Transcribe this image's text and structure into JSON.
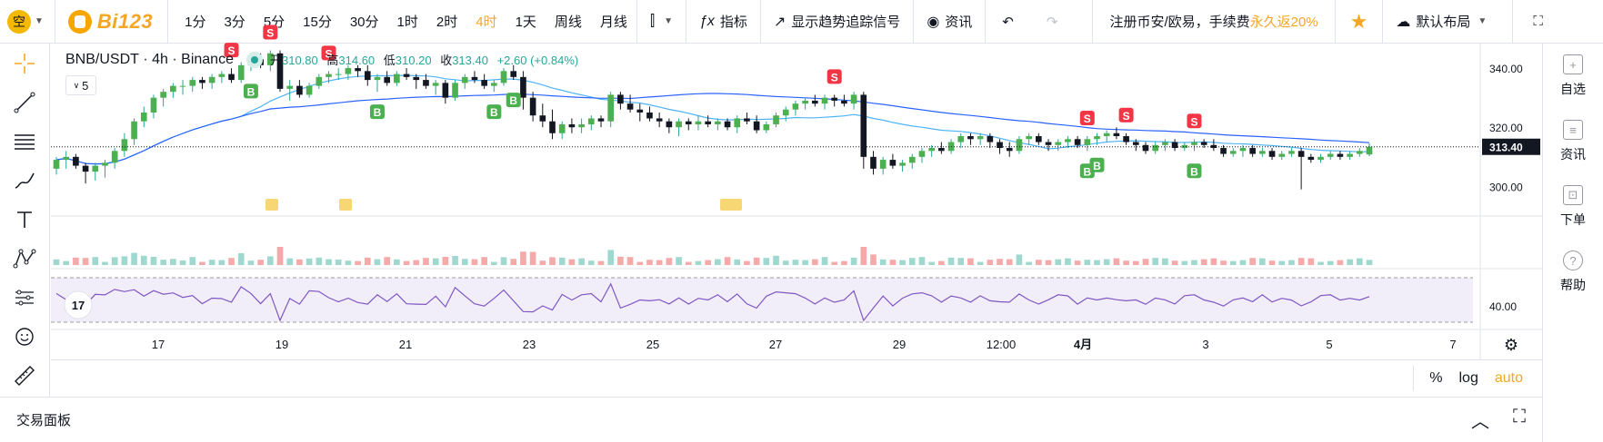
{
  "topbar": {
    "avatar_char": "空",
    "logo_text": "Bi123",
    "intervals": [
      "1分",
      "3分",
      "5分",
      "15分",
      "30分",
      "1时",
      "2时",
      "4时",
      "1天",
      "周线",
      "月线"
    ],
    "active_interval": "4时",
    "indicators_label": "指标",
    "trend_signal_label": "显示趋势追踪信号",
    "news_label": "资讯",
    "promo_text": "注册币安/欧易，手续费",
    "promo_highlight": "永久返20%",
    "layout_label": "默认布局"
  },
  "legend": {
    "symbol": "BNB/USDT",
    "interval": "4h",
    "exchange": "Binance",
    "open_label": "开",
    "open": "310.80",
    "high_label": "高",
    "high": "314.60",
    "low_label": "低",
    "low": "310.20",
    "close_label": "收",
    "close": "313.40",
    "change": "+2.60 (+0.84%)",
    "ma_count": "5"
  },
  "right_sidebar": {
    "items": [
      {
        "label": "自选",
        "icon": "plus-square-icon"
      },
      {
        "label": "资讯",
        "icon": "news-icon"
      },
      {
        "label": "下单",
        "icon": "order-icon"
      },
      {
        "label": "帮助",
        "icon": "help-icon"
      }
    ]
  },
  "bottom": {
    "percent": "%",
    "log": "log",
    "auto": "auto",
    "trade_panel_label": "交易面板"
  },
  "colors": {
    "up": "#26a69a",
    "down": "#131722",
    "accent": "#f5a623",
    "ma_fast": "#4fb3f6",
    "ma_slow": "#2962ff",
    "sell": "#f23645",
    "buy": "#4caf50",
    "rsi_line": "#7e57c2"
  },
  "chart_data": {
    "type": "candlestick",
    "symbol": "BNB/USDT",
    "interval": "4h",
    "price_axis_ticks": [
      "340.00",
      "320.00",
      "300.00"
    ],
    "rsi_axis_ticks": [
      "40.00"
    ],
    "last_price_label": "313.40",
    "x_ticks": [
      "17",
      "19",
      "21",
      "23",
      "25",
      "27",
      "29",
      "12:00",
      "4月",
      "3",
      "5",
      "7"
    ],
    "candles": [
      [
        306,
        310,
        304,
        309
      ],
      [
        309,
        312,
        306,
        310
      ],
      [
        310,
        311,
        306,
        307
      ],
      [
        307,
        308,
        301,
        305
      ],
      [
        305,
        308,
        302,
        307
      ],
      [
        307,
        309,
        303,
        308
      ],
      [
        308,
        313,
        306,
        312
      ],
      [
        312,
        318,
        310,
        316
      ],
      [
        316,
        323,
        314,
        322
      ],
      [
        322,
        327,
        320,
        325
      ],
      [
        325,
        331,
        323,
        330
      ],
      [
        330,
        333,
        327,
        332
      ],
      [
        332,
        335,
        330,
        334
      ],
      [
        334,
        336,
        331,
        334
      ],
      [
        334,
        337,
        332,
        336
      ],
      [
        336,
        337,
        333,
        335
      ],
      [
        335,
        338,
        333,
        337
      ],
      [
        337,
        339,
        335,
        338
      ],
      [
        338,
        340,
        335,
        336
      ],
      [
        336,
        342,
        335,
        341
      ],
      [
        341,
        344,
        339,
        343
      ],
      [
        343,
        345,
        340,
        341
      ],
      [
        341,
        346,
        339,
        345
      ],
      [
        345,
        346,
        332,
        333
      ],
      [
        333,
        336,
        329,
        334
      ],
      [
        334,
        336,
        330,
        331
      ],
      [
        331,
        335,
        330,
        334
      ],
      [
        334,
        338,
        333,
        337
      ],
      [
        337,
        339,
        335,
        338
      ],
      [
        338,
        340,
        336,
        338
      ],
      [
        338,
        341,
        336,
        340
      ],
      [
        340,
        341,
        337,
        339
      ],
      [
        339,
        341,
        334,
        336
      ],
      [
        336,
        338,
        332,
        337
      ],
      [
        337,
        339,
        334,
        335
      ],
      [
        335,
        339,
        334,
        338
      ],
      [
        338,
        340,
        336,
        337
      ],
      [
        337,
        338,
        333,
        336
      ],
      [
        336,
        338,
        333,
        334
      ],
      [
        334,
        336,
        331,
        335
      ],
      [
        335,
        336,
        328,
        330
      ],
      [
        330,
        336,
        329,
        335
      ],
      [
        335,
        338,
        333,
        337
      ],
      [
        337,
        339,
        335,
        336
      ],
      [
        336,
        338,
        333,
        334
      ],
      [
        334,
        336,
        332,
        335
      ],
      [
        335,
        340,
        334,
        339
      ],
      [
        339,
        341,
        336,
        337
      ],
      [
        337,
        339,
        326,
        330
      ],
      [
        330,
        332,
        322,
        324
      ],
      [
        324,
        328,
        320,
        322
      ],
      [
        322,
        326,
        316,
        318
      ],
      [
        318,
        322,
        316,
        321
      ],
      [
        321,
        323,
        318,
        320
      ],
      [
        320,
        323,
        318,
        321
      ],
      [
        321,
        324,
        319,
        323
      ],
      [
        323,
        324,
        320,
        322
      ],
      [
        322,
        332,
        320,
        331
      ],
      [
        331,
        332,
        326,
        328
      ],
      [
        328,
        331,
        325,
        326
      ],
      [
        326,
        328,
        322,
        325
      ],
      [
        325,
        327,
        322,
        323
      ],
      [
        323,
        325,
        320,
        322
      ],
      [
        322,
        323,
        318,
        320
      ],
      [
        320,
        323,
        317,
        322
      ],
      [
        322,
        323,
        319,
        321
      ],
      [
        321,
        324,
        319,
        322
      ],
      [
        322,
        324,
        320,
        321
      ],
      [
        321,
        323,
        319,
        322
      ],
      [
        322,
        323,
        319,
        320
      ],
      [
        320,
        324,
        318,
        323
      ],
      [
        323,
        325,
        321,
        322
      ],
      [
        322,
        324,
        318,
        319
      ],
      [
        319,
        322,
        318,
        321
      ],
      [
        321,
        325,
        320,
        324
      ],
      [
        324,
        327,
        322,
        326
      ],
      [
        326,
        329,
        324,
        328
      ],
      [
        328,
        330,
        326,
        329
      ],
      [
        329,
        331,
        327,
        328
      ],
      [
        328,
        331,
        326,
        330
      ],
      [
        330,
        331,
        327,
        329
      ],
      [
        329,
        331,
        327,
        328
      ],
      [
        328,
        332,
        326,
        331
      ],
      [
        331,
        332,
        306,
        310
      ],
      [
        310,
        312,
        304,
        306
      ],
      [
        306,
        310,
        304,
        309
      ],
      [
        309,
        311,
        306,
        307
      ],
      [
        307,
        309,
        305,
        308
      ],
      [
        308,
        311,
        306,
        310
      ],
      [
        310,
        313,
        308,
        312
      ],
      [
        312,
        314,
        310,
        313
      ],
      [
        313,
        315,
        311,
        312
      ],
      [
        312,
        316,
        311,
        315
      ],
      [
        315,
        318,
        313,
        317
      ],
      [
        317,
        318,
        314,
        316
      ],
      [
        316,
        318,
        314,
        317
      ],
      [
        317,
        318,
        313,
        315
      ],
      [
        315,
        316,
        311,
        313
      ],
      [
        313,
        315,
        310,
        312
      ],
      [
        312,
        317,
        311,
        316
      ],
      [
        316,
        318,
        314,
        317
      ],
      [
        317,
        318,
        314,
        315
      ],
      [
        315,
        316,
        312,
        314
      ],
      [
        314,
        316,
        312,
        315
      ],
      [
        315,
        317,
        313,
        316
      ],
      [
        316,
        317,
        313,
        314
      ],
      [
        314,
        317,
        312,
        316
      ],
      [
        316,
        318,
        314,
        317
      ],
      [
        317,
        319,
        315,
        318
      ],
      [
        318,
        320,
        316,
        317
      ],
      [
        317,
        318,
        314,
        315
      ],
      [
        315,
        316,
        312,
        314
      ],
      [
        314,
        315,
        311,
        312
      ],
      [
        312,
        315,
        311,
        314
      ],
      [
        314,
        316,
        312,
        315
      ],
      [
        315,
        316,
        312,
        313
      ],
      [
        313,
        315,
        312,
        314
      ],
      [
        314,
        316,
        312,
        315
      ],
      [
        315,
        316,
        313,
        314
      ],
      [
        314,
        316,
        312,
        313
      ],
      [
        313,
        314,
        310,
        311
      ],
      [
        311,
        313,
        310,
        312
      ],
      [
        312,
        314,
        310,
        313
      ],
      [
        313,
        314,
        310,
        311
      ],
      [
        311,
        313,
        310,
        312
      ],
      [
        312,
        313,
        309,
        310
      ],
      [
        310,
        312,
        309,
        311
      ],
      [
        311,
        313,
        310,
        312
      ],
      [
        312,
        313,
        299,
        310
      ],
      [
        310,
        311,
        308,
        309
      ],
      [
        309,
        311,
        308,
        310
      ],
      [
        310,
        312,
        309,
        311
      ],
      [
        311,
        312,
        309,
        310
      ],
      [
        310,
        312,
        309,
        311
      ],
      [
        311,
        313,
        310,
        312
      ],
      [
        310.8,
        314.6,
        310.2,
        313.4
      ]
    ],
    "ma_fast_name": "",
    "ma_slow_name": "",
    "signals": [
      {
        "type": "S",
        "index": 18
      },
      {
        "type": "B",
        "index": 20
      },
      {
        "type": "S",
        "index": 22
      },
      {
        "type": "S",
        "index": 28
      },
      {
        "type": "B",
        "index": 33
      },
      {
        "type": "B",
        "index": 45
      },
      {
        "type": "B",
        "index": 47
      },
      {
        "type": "S",
        "index": 80
      },
      {
        "type": "S",
        "index": 106
      },
      {
        "type": "B",
        "index": 106
      },
      {
        "type": "B",
        "index": 107
      },
      {
        "type": "S",
        "index": 110
      },
      {
        "type": "S",
        "index": 117
      },
      {
        "type": "B",
        "index": 117
      }
    ]
  }
}
